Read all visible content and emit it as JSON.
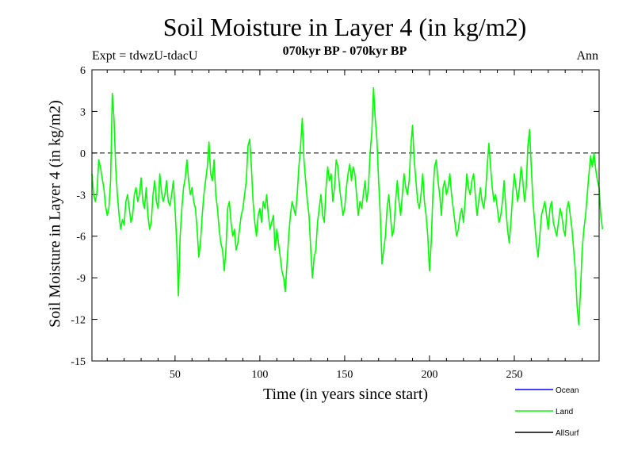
{
  "chart_data": {
    "type": "line",
    "title": "Soil Moisture in Layer 4 (in kg/m2)",
    "subtitle": "070kyr BP - 070kyr BP",
    "experiment": "Expt = tdwzU-tdacU",
    "period": "Ann",
    "xlabel": "Time (in years since start)",
    "ylabel": "Soil Moisture in Layer 4 (in kg/m2)",
    "xlim": [
      1,
      300
    ],
    "ylim": [
      -15,
      6
    ],
    "xticks": [
      50,
      100,
      150,
      200,
      250
    ],
    "yticks": [
      6,
      3,
      0,
      -3,
      -6,
      -9,
      -12,
      -15
    ],
    "zero_line": {
      "y": 0,
      "style": "dashed"
    },
    "series": [
      {
        "name": "Ocean",
        "color": "#0000ff",
        "values": []
      },
      {
        "name": "Land",
        "color": "#00ff00",
        "x_start": 1,
        "x_step": 1,
        "values": [
          -1.5,
          -3.0,
          -3.5,
          -2.8,
          -0.5,
          -1.0,
          -1.8,
          -2.5,
          -3.8,
          -4.5,
          -4.0,
          -2.0,
          4.3,
          2.5,
          -1.0,
          -3.0,
          -4.5,
          -5.5,
          -4.8,
          -5.2,
          -3.5,
          -3.0,
          -4.0,
          -5.0,
          -4.5,
          -3.0,
          -2.5,
          -3.5,
          -3.0,
          -1.8,
          -3.5,
          -4.0,
          -2.5,
          -4.5,
          -5.5,
          -5.0,
          -3.0,
          -2.0,
          -3.5,
          -4.0,
          -1.5,
          -2.8,
          -3.5,
          -3.0,
          -2.0,
          -3.5,
          -3.8,
          -3.0,
          -2.0,
          -4.0,
          -6.5,
          -10.3,
          -6.0,
          -4.0,
          -2.5,
          -1.8,
          -0.5,
          -2.0,
          -3.0,
          -2.5,
          -3.5,
          -4.0,
          -5.5,
          -7.5,
          -6.5,
          -4.5,
          -3.0,
          -2.0,
          -1.0,
          0.8,
          -1.5,
          -2.0,
          -0.5,
          -3.0,
          -4.0,
          -5.5,
          -6.5,
          -7.0,
          -8.5,
          -7.0,
          -4.0,
          -3.5,
          -5.0,
          -6.0,
          -5.5,
          -7.0,
          -6.5,
          -5.5,
          -4.5,
          -4.0,
          -3.0,
          -2.0,
          0.5,
          1.0,
          -1.0,
          -3.5,
          -5.0,
          -6.0,
          -4.5,
          -4.0,
          -5.0,
          -3.5,
          -4.0,
          -3.0,
          -4.5,
          -5.5,
          -5.0,
          -4.5,
          -7.0,
          -5.5,
          -6.5,
          -7.5,
          -8.5,
          -9.0,
          -10.0,
          -8.0,
          -6.0,
          -4.5,
          -3.5,
          -4.0,
          -4.5,
          -3.0,
          -1.0,
          0.5,
          2.5,
          -0.5,
          -2.0,
          -3.5,
          -4.5,
          -7.0,
          -9.0,
          -7.5,
          -7.0,
          -5.0,
          -4.0,
          -3.0,
          -4.5,
          -5.0,
          -2.5,
          -1.0,
          -2.0,
          -1.5,
          -3.5,
          -2.5,
          -0.5,
          -1.0,
          -2.5,
          -3.5,
          -4.5,
          -4.0,
          -2.5,
          -1.5,
          -0.8,
          -2.0,
          -1.0,
          -1.5,
          -3.0,
          -4.5,
          -3.5,
          -4.0,
          -3.0,
          -2.0,
          -3.5,
          -2.5,
          0.0,
          1.5,
          4.7,
          2.5,
          1.0,
          -2.0,
          -4.5,
          -8.0,
          -7.0,
          -6.0,
          -4.0,
          -3.0,
          -4.5,
          -6.0,
          -5.5,
          -3.5,
          -2.0,
          -3.5,
          -4.5,
          -3.0,
          -1.5,
          -2.5,
          -3.0,
          -2.0,
          0.5,
          2.0,
          -0.5,
          -2.0,
          -3.5,
          -4.0,
          -3.0,
          -1.5,
          -3.5,
          -4.5,
          -6.0,
          -8.5,
          -6.5,
          -3.0,
          -1.0,
          -0.5,
          -2.0,
          -3.0,
          -4.5,
          -2.5,
          -2.0,
          -3.0,
          -2.5,
          -1.5,
          -3.0,
          -4.0,
          -5.0,
          -6.0,
          -5.5,
          -4.5,
          -4.0,
          -5.0,
          -3.5,
          -1.5,
          -2.5,
          -3.0,
          -2.0,
          -1.5,
          -3.0,
          -4.5,
          -3.5,
          -2.5,
          -3.5,
          -4.0,
          -3.0,
          -1.0,
          0.7,
          -1.0,
          -2.5,
          -3.5,
          -3.0,
          -4.0,
          -5.0,
          -4.5,
          -3.5,
          -2.0,
          -4.0,
          -5.5,
          -6.5,
          -5.0,
          -3.0,
          -1.5,
          -2.5,
          -3.5,
          -2.5,
          -1.0,
          -2.0,
          -3.5,
          -2.5,
          0.5,
          1.7,
          -1.0,
          -3.5,
          -5.0,
          -6.5,
          -7.5,
          -6.0,
          -4.5,
          -4.0,
          -3.5,
          -4.5,
          -5.5,
          -4.0,
          -3.5,
          -5.0,
          -5.5,
          -6.0,
          -5.0,
          -4.0,
          -4.5,
          -5.5,
          -6.0,
          -4.0,
          -3.5,
          -4.5,
          -5.5,
          -7.0,
          -8.5,
          -11.0,
          -12.4,
          -10.0,
          -7.0,
          -5.5,
          -4.5,
          -3.0,
          -1.5,
          -0.2,
          -1.0,
          0.0,
          -1.2,
          -2.0,
          -2.5,
          -4.5,
          -5.5
        ]
      },
      {
        "name": "AllSurf",
        "color": "#000000",
        "values": []
      }
    ],
    "legend": {
      "position": "bottom-right",
      "entries": [
        "Ocean",
        "Land",
        "AllSurf"
      ]
    },
    "grid": false
  }
}
